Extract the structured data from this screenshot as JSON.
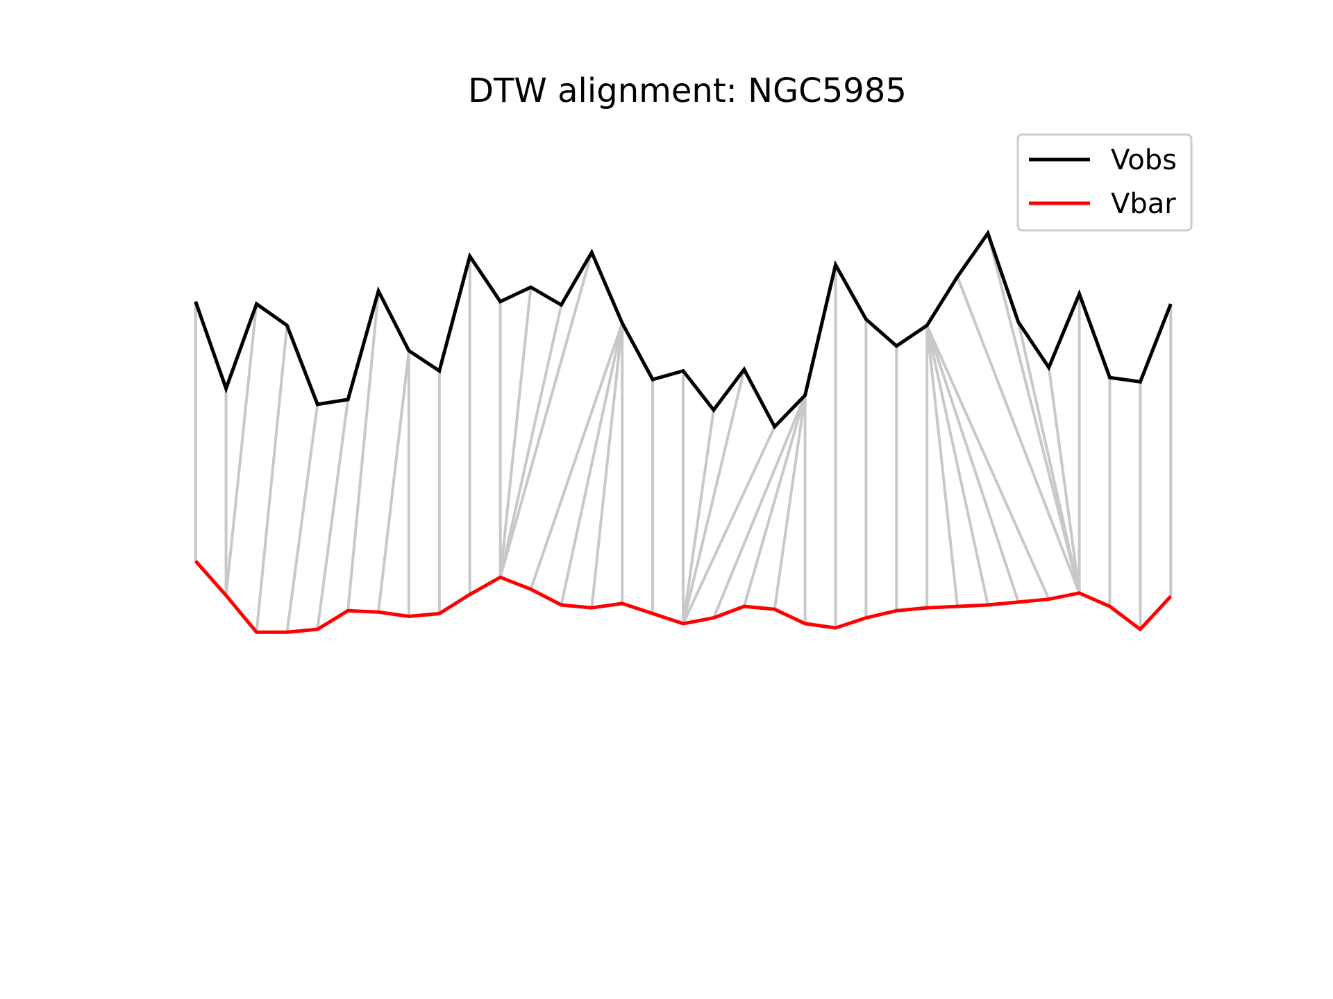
{
  "chart_data": {
    "type": "line",
    "title": "DTW alignment: NGC5985",
    "xlabel": "",
    "ylabel": "",
    "axes_visible": false,
    "grid": false,
    "legend_position": "top-right",
    "x": [
      0,
      1,
      2,
      3,
      4,
      5,
      6,
      7,
      8,
      9,
      10,
      11,
      12,
      13,
      14,
      15,
      16,
      17,
      18,
      19,
      20,
      21,
      22,
      23,
      24,
      25,
      26,
      27,
      28,
      29,
      30,
      31,
      32
    ],
    "xlim": [
      -0.95,
      32.95
    ],
    "ylim": [
      -0.42,
      1.17
    ],
    "series": [
      {
        "name": "Vobs",
        "color": "#000000",
        "values": [
          0.79,
          0.608,
          0.785,
          0.74,
          0.575,
          0.585,
          0.812,
          0.687,
          0.645,
          0.885,
          0.79,
          0.82,
          0.783,
          0.893,
          0.745,
          0.627,
          0.645,
          0.563,
          0.648,
          0.528,
          0.594,
          0.867,
          0.753,
          0.697,
          0.74,
          0.842,
          0.933,
          0.747,
          0.652,
          0.806,
          0.631,
          0.622,
          0.785
        ]
      },
      {
        "name": "Vbar",
        "color": "#ff0000",
        "values": [
          0.247,
          0.175,
          0.098,
          0.098,
          0.104,
          0.143,
          0.14,
          0.131,
          0.137,
          0.177,
          0.213,
          0.188,
          0.155,
          0.149,
          0.158,
          0.137,
          0.116,
          0.128,
          0.152,
          0.146,
          0.116,
          0.107,
          0.128,
          0.143,
          0.149,
          0.152,
          0.155,
          0.161,
          0.167,
          0.18,
          0.152,
          0.104,
          0.173
        ]
      }
    ],
    "alignment_color": "#c8c8c8",
    "alignment_path": [
      [
        0,
        0
      ],
      [
        1,
        1
      ],
      [
        2,
        1
      ],
      [
        3,
        2
      ],
      [
        4,
        3
      ],
      [
        5,
        4
      ],
      [
        6,
        5
      ],
      [
        7,
        6
      ],
      [
        7,
        7
      ],
      [
        8,
        8
      ],
      [
        9,
        9
      ],
      [
        10,
        10
      ],
      [
        11,
        10
      ],
      [
        12,
        10
      ],
      [
        13,
        10
      ],
      [
        14,
        11
      ],
      [
        14,
        12
      ],
      [
        14,
        13
      ],
      [
        14,
        14
      ],
      [
        15,
        15
      ],
      [
        16,
        16
      ],
      [
        17,
        16
      ],
      [
        18,
        16
      ],
      [
        19,
        16
      ],
      [
        20,
        17
      ],
      [
        20,
        18
      ],
      [
        20,
        19
      ],
      [
        20,
        20
      ],
      [
        21,
        21
      ],
      [
        22,
        22
      ],
      [
        23,
        23
      ],
      [
        24,
        24
      ],
      [
        24,
        25
      ],
      [
        24,
        26
      ],
      [
        24,
        27
      ],
      [
        24,
        28
      ],
      [
        25,
        29
      ],
      [
        26,
        29
      ],
      [
        27,
        29
      ],
      [
        28,
        29
      ],
      [
        29,
        29
      ],
      [
        30,
        30
      ],
      [
        31,
        31
      ],
      [
        32,
        32
      ]
    ]
  }
}
